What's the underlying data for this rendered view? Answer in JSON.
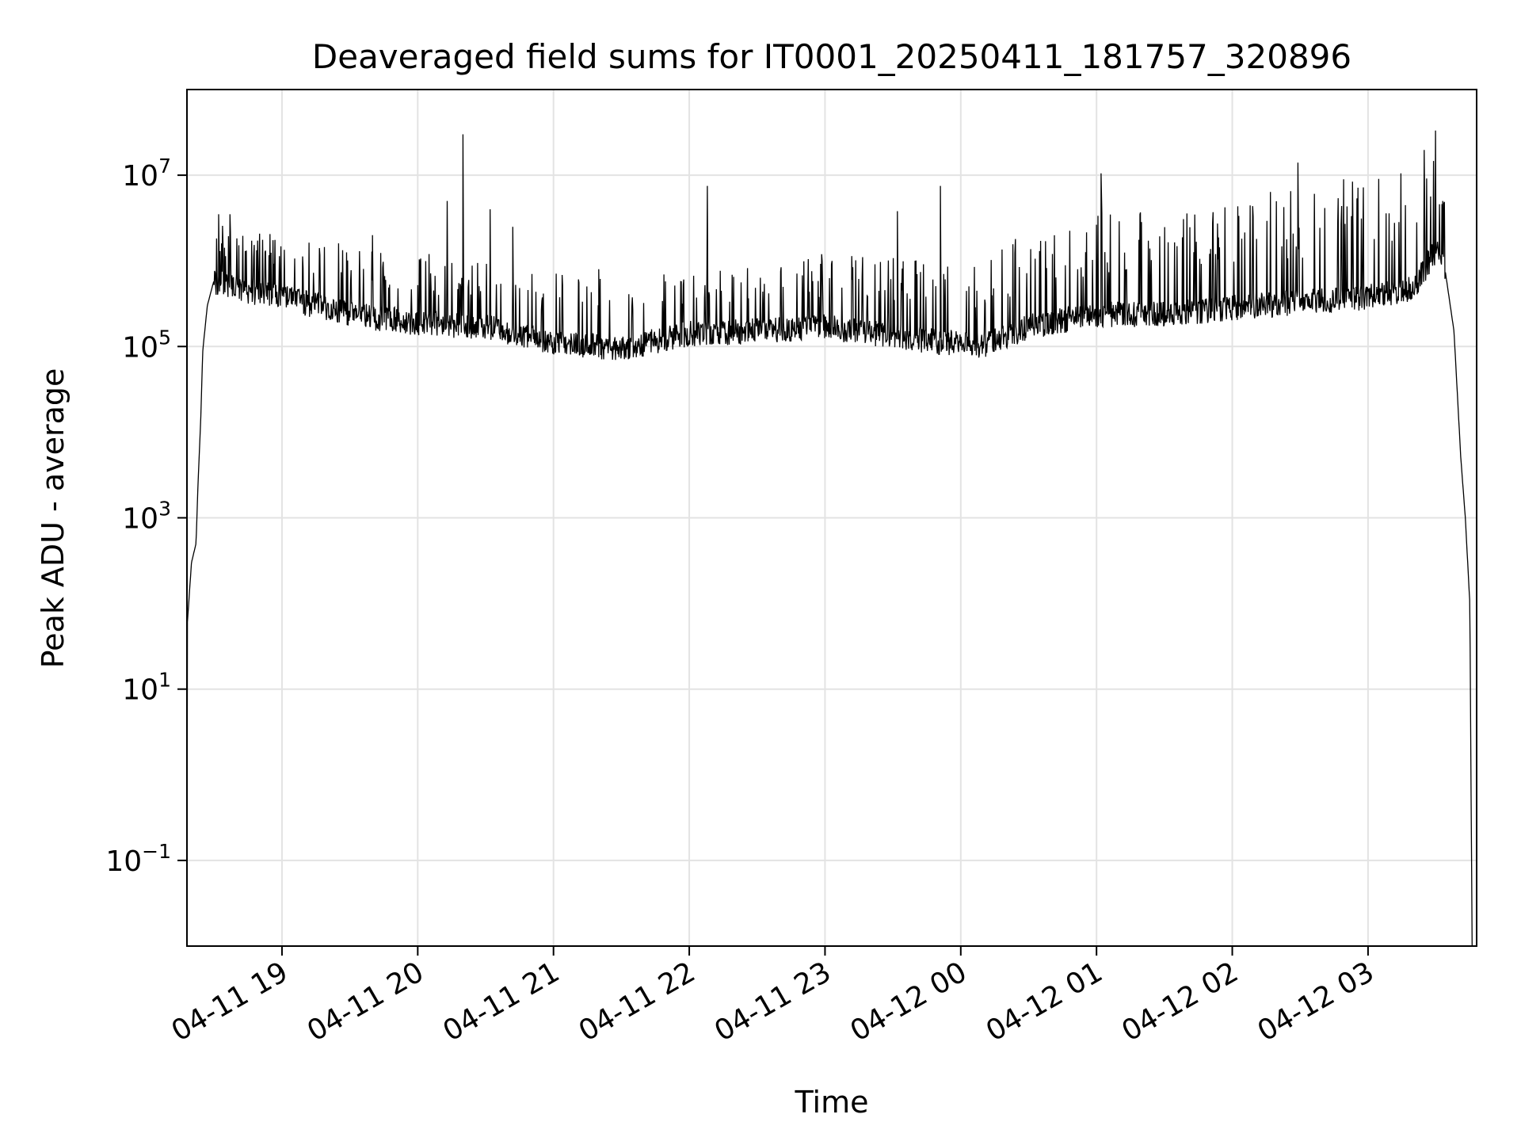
{
  "chart_data": {
    "type": "line",
    "title": "Deaveraged field sums for IT0001_20250411_181757_320896",
    "xlabel": "Time",
    "ylabel": "Peak ADU - average",
    "yscale": "log",
    "ylim": [
      0.01,
      100000000
    ],
    "xlim": [
      "2025-04-11 18:18",
      "2025-04-12 03:48"
    ],
    "grid": true,
    "line_color": "#000000",
    "x_ticks": [
      {
        "value": "2025-04-11 19:00",
        "label": "04-11 19"
      },
      {
        "value": "2025-04-11 20:00",
        "label": "04-11 20"
      },
      {
        "value": "2025-04-11 21:00",
        "label": "04-11 21"
      },
      {
        "value": "2025-04-11 22:00",
        "label": "04-11 22"
      },
      {
        "value": "2025-04-11 23:00",
        "label": "04-11 23"
      },
      {
        "value": "2025-04-12 00:00",
        "label": "04-12 00"
      },
      {
        "value": "2025-04-12 01:00",
        "label": "04-12 01"
      },
      {
        "value": "2025-04-12 02:00",
        "label": "04-12 02"
      },
      {
        "value": "2025-04-12 03:00",
        "label": "04-12 03"
      }
    ],
    "y_ticks": [
      {
        "value": 0.1,
        "base": "10",
        "exp": "−1"
      },
      {
        "value": 10,
        "base": "10",
        "exp": "1"
      },
      {
        "value": 1000,
        "base": "10",
        "exp": "3"
      },
      {
        "value": 100000,
        "base": "10",
        "exp": "5"
      },
      {
        "value": 10000000,
        "base": "10",
        "exp": "7"
      }
    ],
    "series": [
      {
        "anchors": [
          [
            "2025-04-11 18:18",
            0.01
          ],
          [
            "2025-04-11 18:18",
            50
          ],
          [
            "2025-04-11 18:20",
            300
          ],
          [
            "2025-04-11 18:22",
            500
          ],
          [
            "2025-04-11 18:23",
            3000
          ],
          [
            "2025-04-11 18:24",
            12000
          ],
          [
            "2025-04-11 18:25",
            90000
          ],
          [
            "2025-04-11 18:27",
            300000
          ],
          [
            "2025-04-11 18:30",
            600000
          ],
          [
            "2025-04-11 18:40",
            500000
          ],
          [
            "2025-04-11 19:00",
            400000
          ],
          [
            "2025-04-11 19:30",
            250000
          ],
          [
            "2025-04-11 20:00",
            200000
          ],
          [
            "2025-04-11 20:30",
            180000
          ],
          [
            "2025-04-11 21:00",
            120000
          ],
          [
            "2025-04-11 21:30",
            100000
          ],
          [
            "2025-04-11 22:00",
            150000
          ],
          [
            "2025-04-11 22:30",
            160000
          ],
          [
            "2025-04-11 23:00",
            180000
          ],
          [
            "2025-04-11 23:30",
            140000
          ],
          [
            "2025-04-11 23:50",
            120000
          ],
          [
            "2025-04-12 00:10",
            110000
          ],
          [
            "2025-04-12 00:30",
            180000
          ],
          [
            "2025-04-12 01:00",
            250000
          ],
          [
            "2025-04-12 01:30",
            250000
          ],
          [
            "2025-04-12 02:00",
            300000
          ],
          [
            "2025-04-12 02:30",
            350000
          ],
          [
            "2025-04-12 03:00",
            400000
          ],
          [
            "2025-04-12 03:20",
            500000
          ],
          [
            "2025-04-12 03:30",
            1400000
          ],
          [
            "2025-04-12 03:34",
            800000
          ],
          [
            "2025-04-12 03:38",
            150000
          ],
          [
            "2025-04-12 03:41",
            5000
          ],
          [
            "2025-04-12 03:43",
            1000
          ],
          [
            "2025-04-12 03:45",
            100
          ],
          [
            "2025-04-12 03:46",
            0.01
          ]
        ],
        "noise": [
          [
            "2025-04-11 18:30",
            2.5
          ],
          [
            "2025-04-11 23:00",
            3
          ],
          [
            "2025-04-12 00:30",
            4.5
          ],
          [
            "2025-04-12 03:20",
            8
          ]
        ],
        "spikes": [
          [
            "2025-04-11 18:32",
            3500000
          ],
          [
            "2025-04-11 18:37",
            3500000
          ],
          [
            "2025-04-11 19:25",
            1600000
          ],
          [
            "2025-04-11 19:40",
            2000000
          ],
          [
            "2025-04-11 20:05",
            1200000
          ],
          [
            "2025-04-11 20:13",
            5000000
          ],
          [
            "2025-04-11 20:20",
            30000000
          ],
          [
            "2025-04-11 20:32",
            4000000
          ],
          [
            "2025-04-11 20:42",
            2500000
          ],
          [
            "2025-04-11 21:20",
            800000
          ],
          [
            "2025-04-11 22:08",
            7500000
          ],
          [
            "2025-04-11 23:32",
            3800000
          ],
          [
            "2025-04-11 23:51",
            7500000
          ],
          [
            "2025-04-12 01:02",
            10500000
          ],
          [
            "2025-04-12 02:29",
            14000000
          ],
          [
            "2025-04-12 03:33",
            5000000
          ]
        ]
      }
    ]
  }
}
